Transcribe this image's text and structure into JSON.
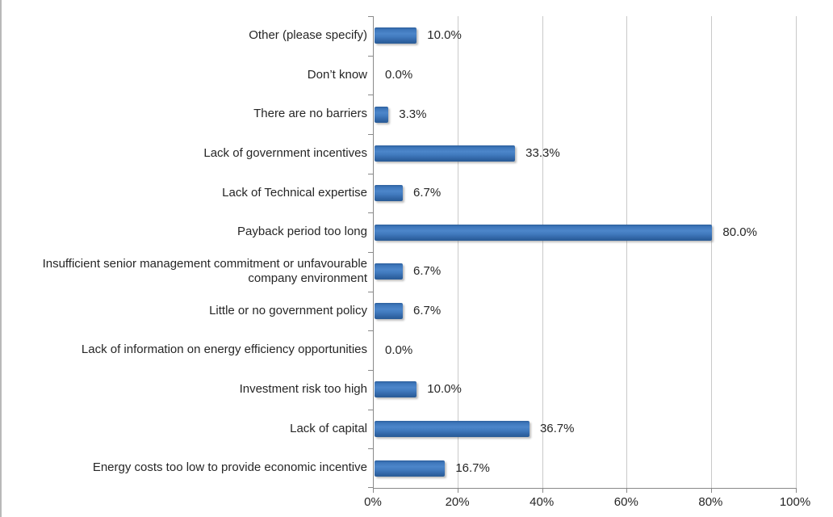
{
  "chart_data": {
    "type": "bar",
    "orientation": "horizontal",
    "title": "",
    "xlabel": "",
    "ylabel": "",
    "xlim": [
      0,
      100
    ],
    "grid": true,
    "legend": false,
    "categories": [
      "Other (please specify)",
      "Don’t know",
      "There are no barriers",
      "Lack of government incentives",
      "Lack of Technical expertise",
      "Payback period too long",
      "Insufficient senior management commitment or unfavourable company environment",
      "Little or no government policy",
      "Lack of information on energy efficiency opportunities",
      "Investment risk too high",
      "Lack of capital",
      "Energy costs too low to provide economic incentive"
    ],
    "values": [
      10.0,
      0.0,
      3.3,
      33.3,
      6.7,
      80.0,
      6.7,
      6.7,
      0.0,
      10.0,
      36.7,
      16.7
    ],
    "data_labels": [
      "10.0%",
      "0.0%",
      "3.3%",
      "33.3%",
      "6.7%",
      "80.0%",
      "6.7%",
      "6.7%",
      "0.0%",
      "10.0%",
      "36.7%",
      "16.7%"
    ],
    "x_ticks": [
      "0%",
      "20%",
      "40%",
      "60%",
      "80%",
      "100%"
    ],
    "colors": {
      "bar": "#3B73B9",
      "gridline": "#C9C9C9",
      "axis": "#898989",
      "text": "#262626",
      "background": "#FFFFFF"
    }
  }
}
